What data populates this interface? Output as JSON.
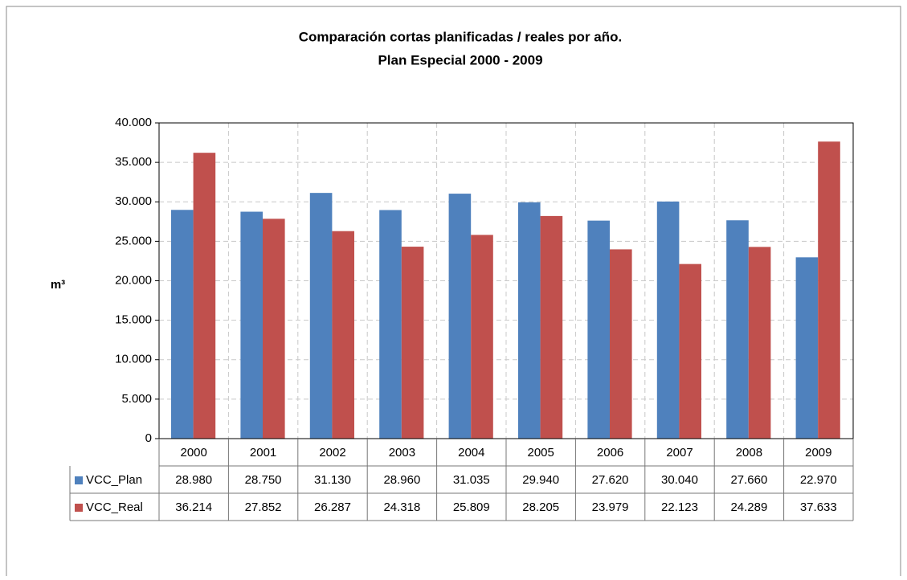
{
  "chart_data": {
    "type": "bar",
    "title": "Comparación cortas planificadas  / reales por año.",
    "subtitle": "Plan Especial  2000 - 2009",
    "y_label": "m³",
    "categories": [
      "2000",
      "2001",
      "2002",
      "2003",
      "2004",
      "2005",
      "2006",
      "2007",
      "2008",
      "2009"
    ],
    "series": [
      {
        "name": "VCC_Plan",
        "color": "#4f81bd",
        "values": [
          28980,
          28750,
          31130,
          28960,
          31035,
          29940,
          27620,
          30040,
          27660,
          22970
        ],
        "value_labels": [
          "28.980",
          "28.750",
          "31.130",
          "28.960",
          "31.035",
          "29.940",
          "27.620",
          "30.040",
          "27.660",
          "22.970"
        ]
      },
      {
        "name": "VCC_Real",
        "color": "#c0504d",
        "values": [
          36214,
          27852,
          26287,
          24318,
          25809,
          28205,
          23979,
          22123,
          24289,
          37633
        ],
        "value_labels": [
          "36.214",
          "27.852",
          "26.287",
          "24.318",
          "25.809",
          "28.205",
          "23.979",
          "22.123",
          "24.289",
          "37.633"
        ]
      }
    ],
    "ylim": [
      0,
      40000
    ],
    "yticks": [
      0,
      {
        "value": 5000,
        "label": "5.000"
      },
      {
        "value": 10000,
        "label": "10.000"
      },
      {
        "value": 15000,
        "label": "15.000"
      },
      {
        "value": 20000,
        "label": "20.000"
      },
      {
        "value": 25000,
        "label": "25.000"
      },
      {
        "value": 30000,
        "label": "30.000"
      },
      {
        "value": 35000,
        "label": "35.000"
      },
      {
        "value": 40000,
        "label": "40.000"
      }
    ],
    "grid": true
  }
}
